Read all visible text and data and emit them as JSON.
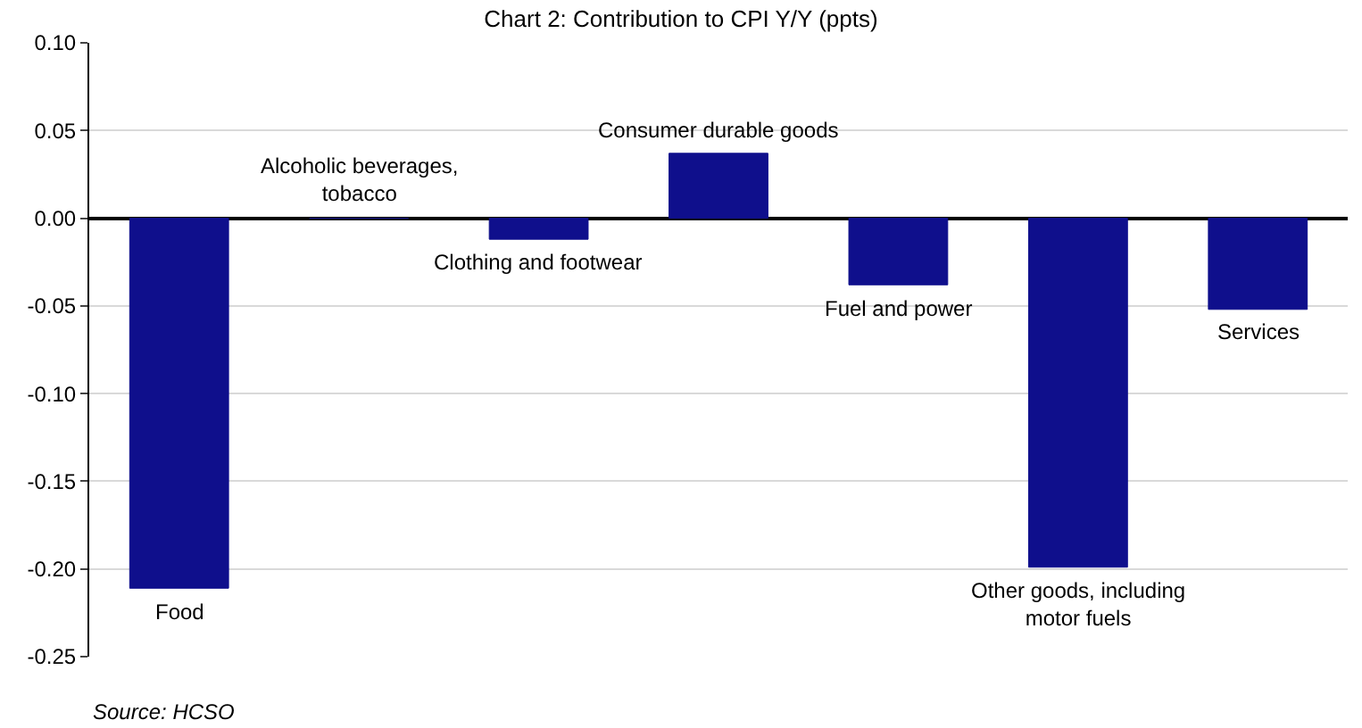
{
  "chart_data": {
    "type": "bar",
    "title": "Chart 2: Contribution to CPI Y/Y (ppts)",
    "categories": [
      "Food",
      "Alcoholic beverages, tobacco",
      "Clothing and footwear",
      "Consumer durable goods",
      "Fuel and power",
      "Other goods, including motor fuels",
      "Services"
    ],
    "values": [
      -0.211,
      0,
      -0.012,
      0.037,
      -0.038,
      -0.199,
      -0.052
    ],
    "color": "#0f0f8c",
    "ylim": [
      -0.25,
      0.1
    ],
    "yticks": [
      {
        "value": 0.1,
        "label": "0.10"
      },
      {
        "value": 0.05,
        "label": "0.05"
      },
      {
        "value": 0,
        "label": "0.00"
      },
      {
        "value": -0.05,
        "label": "-0.05"
      },
      {
        "value": -0.1,
        "label": "-0.10"
      },
      {
        "value": -0.15,
        "label": "-0.15"
      },
      {
        "value": -0.2,
        "label": "-0.20"
      },
      {
        "value": -0.25,
        "label": "-0.25"
      }
    ],
    "grid": "y",
    "tick_labels": "y",
    "legend": false,
    "annotations": [
      "Source: HCSO"
    ]
  }
}
